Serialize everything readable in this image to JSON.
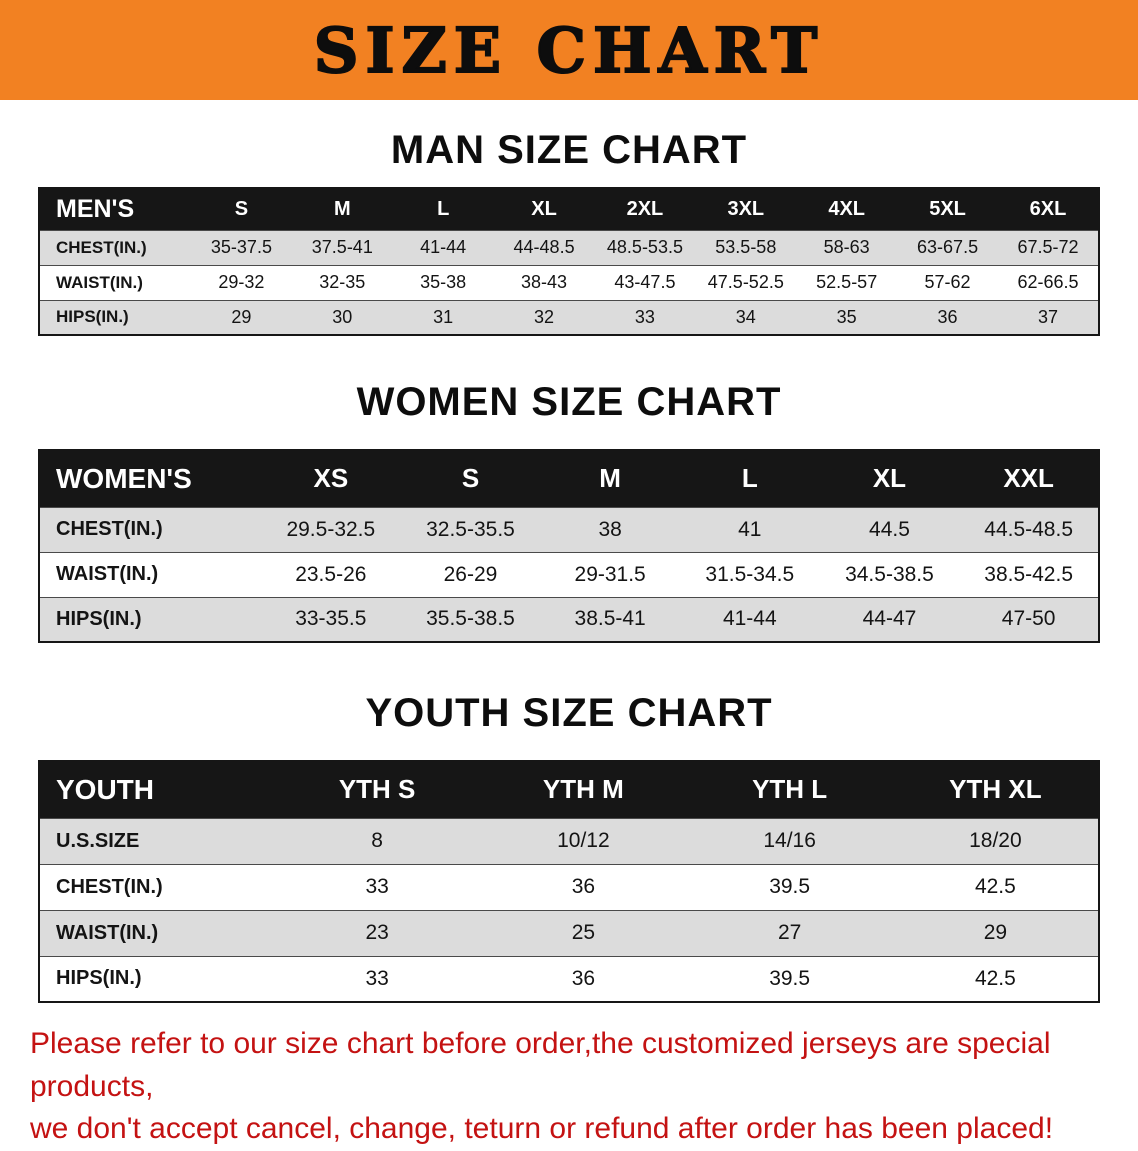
{
  "banner": {
    "title": "SIZE CHART",
    "background": "#f28122"
  },
  "chart_data": [
    {
      "type": "table",
      "id": "men",
      "title": "MAN SIZE CHART",
      "columns": [
        "MEN'S",
        "S",
        "M",
        "L",
        "XL",
        "2XL",
        "3XL",
        "4XL",
        "5XL",
        "6XL"
      ],
      "rows": [
        [
          "CHEST(IN.)",
          "35-37.5",
          "37.5-41",
          "41-44",
          "44-48.5",
          "48.5-53.5",
          "53.5-58",
          "58-63",
          "63-67.5",
          "67.5-72"
        ],
        [
          "WAIST(IN.)",
          "29-32",
          "32-35",
          "35-38",
          "38-43",
          "43-47.5",
          "47.5-52.5",
          "52.5-57",
          "57-62",
          "62-66.5"
        ],
        [
          "HIPS(IN.)",
          "29",
          "30",
          "31",
          "32",
          "33",
          "34",
          "35",
          "36",
          "37"
        ]
      ]
    },
    {
      "type": "table",
      "id": "women",
      "title": "WOMEN SIZE CHART",
      "columns": [
        "WOMEN'S",
        "XS",
        "S",
        "M",
        "L",
        "XL",
        "XXL"
      ],
      "rows": [
        [
          "CHEST(IN.)",
          "29.5-32.5",
          "32.5-35.5",
          "38",
          "41",
          "44.5",
          "44.5-48.5"
        ],
        [
          "WAIST(IN.)",
          "23.5-26",
          "26-29",
          "29-31.5",
          "31.5-34.5",
          "34.5-38.5",
          "38.5-42.5"
        ],
        [
          "HIPS(IN.)",
          "33-35.5",
          "35.5-38.5",
          "38.5-41",
          "41-44",
          "44-47",
          "47-50"
        ]
      ]
    },
    {
      "type": "table",
      "id": "youth",
      "title": "YOUTH SIZE CHART",
      "columns": [
        "YOUTH",
        "YTH S",
        "YTH M",
        "YTH L",
        "YTH XL"
      ],
      "rows": [
        [
          "U.S.SIZE",
          "8",
          "10/12",
          "14/16",
          "18/20"
        ],
        [
          "CHEST(IN.)",
          "33",
          "36",
          "39.5",
          "42.5"
        ],
        [
          "WAIST(IN.)",
          "23",
          "25",
          "27",
          "29"
        ],
        [
          "HIPS(IN.)",
          "33",
          "36",
          "39.5",
          "42.5"
        ]
      ]
    }
  ],
  "footnote": {
    "line1": "Please refer to our size chart before order,the customized jerseys are special products,",
    "line2": "we don't accept cancel, change, teturn or refund after order has been placed!",
    "color": "#c41212"
  }
}
